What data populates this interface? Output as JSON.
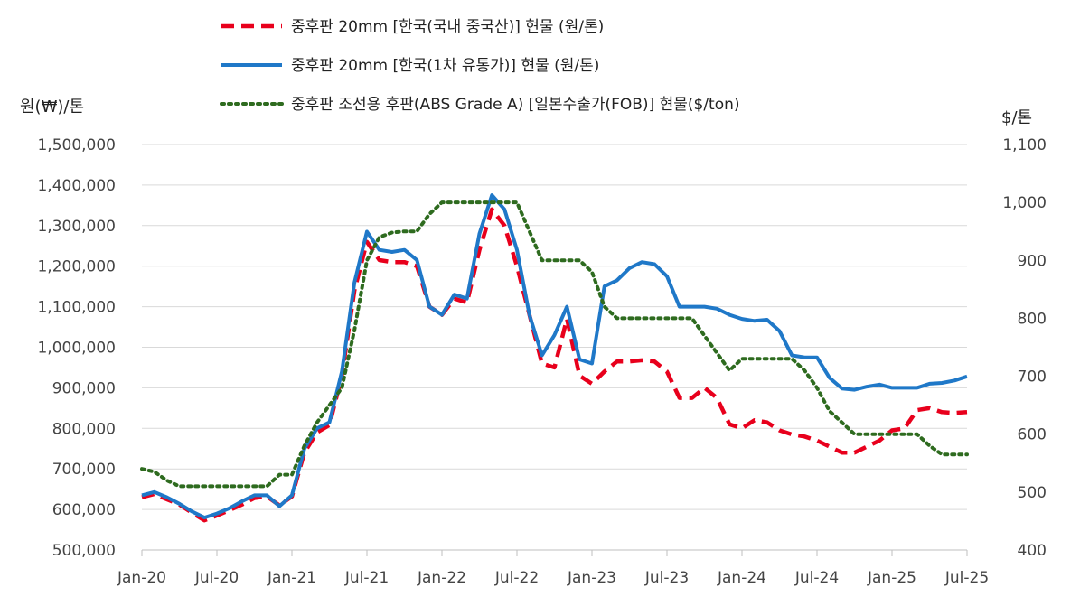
{
  "chart_data": {
    "type": "line",
    "left_axis_label": "원(₩)/톤",
    "right_axis_label": "$/톤",
    "left_ylim": [
      500000,
      1500000
    ],
    "right_ylim": [
      400,
      1100
    ],
    "left_ticks": [
      "500,000",
      "600,000",
      "700,000",
      "800,000",
      "900,000",
      "1,000,000",
      "1,100,000",
      "1,200,000",
      "1,300,000",
      "1,400,000",
      "1,500,000"
    ],
    "right_ticks": [
      "400",
      "500",
      "600",
      "700",
      "800",
      "900",
      "1,000",
      "1,100"
    ],
    "x_tick_labels": [
      "Jan-20",
      "Jul-20",
      "Jan-21",
      "Jul-21",
      "Jan-22",
      "Jul-22",
      "Jan-23",
      "Jul-23",
      "Jan-24",
      "Jul-24",
      "Jan-25",
      "Jul-25"
    ],
    "x_tick_months": [
      0,
      6,
      12,
      18,
      24,
      30,
      36,
      42,
      48,
      54,
      60,
      66
    ],
    "grid": true,
    "legend_position": "top",
    "series": [
      {
        "name": "중후판 20mm [한국(국내 중국산)] 현물 (원/톤)",
        "axis": "left",
        "color": "#e8001c",
        "style": "dashed",
        "points": [
          [
            0,
            630000
          ],
          [
            1,
            638000
          ],
          [
            2,
            625000
          ],
          [
            3,
            612000
          ],
          [
            4,
            592000
          ],
          [
            5,
            573000
          ],
          [
            6,
            585000
          ],
          [
            7,
            598000
          ],
          [
            8,
            612000
          ],
          [
            9,
            628000
          ],
          [
            10,
            632000
          ],
          [
            11,
            610000
          ],
          [
            12,
            632000
          ],
          [
            13,
            740000
          ],
          [
            14,
            790000
          ],
          [
            15,
            808000
          ],
          [
            16,
            930000
          ],
          [
            17,
            1140000
          ],
          [
            18,
            1260000
          ],
          [
            19,
            1215000
          ],
          [
            20,
            1210000
          ],
          [
            21,
            1210000
          ],
          [
            22,
            1200000
          ],
          [
            23,
            1100000
          ],
          [
            24,
            1080000
          ],
          [
            25,
            1120000
          ],
          [
            26,
            1110000
          ],
          [
            27,
            1240000
          ],
          [
            28,
            1340000
          ],
          [
            29,
            1300000
          ],
          [
            30,
            1200000
          ],
          [
            31,
            1080000
          ],
          [
            32,
            960000
          ],
          [
            33,
            950000
          ],
          [
            34,
            1070000
          ],
          [
            35,
            930000
          ],
          [
            36,
            910000
          ],
          [
            37,
            940000
          ],
          [
            38,
            965000
          ],
          [
            39,
            965000
          ],
          [
            40,
            968000
          ],
          [
            41,
            965000
          ],
          [
            42,
            940000
          ],
          [
            43,
            875000
          ],
          [
            44,
            875000
          ],
          [
            45,
            900000
          ],
          [
            46,
            875000
          ],
          [
            47,
            810000
          ],
          [
            48,
            800000
          ],
          [
            49,
            820000
          ],
          [
            50,
            815000
          ],
          [
            51,
            795000
          ],
          [
            52,
            785000
          ],
          [
            53,
            780000
          ],
          [
            54,
            770000
          ],
          [
            55,
            755000
          ],
          [
            56,
            740000
          ],
          [
            57,
            740000
          ],
          [
            58,
            755000
          ],
          [
            59,
            770000
          ],
          [
            60,
            795000
          ],
          [
            61,
            800000
          ],
          [
            62,
            845000
          ],
          [
            63,
            850000
          ],
          [
            64,
            840000
          ],
          [
            65,
            838000
          ],
          [
            66,
            840000
          ]
        ]
      },
      {
        "name": "중후판 20mm [한국(1차 유통가)] 현물 (원/톤)",
        "axis": "left",
        "color": "#1f78c8",
        "style": "solid",
        "points": [
          [
            0,
            635000
          ],
          [
            1,
            643000
          ],
          [
            2,
            630000
          ],
          [
            3,
            614000
          ],
          [
            4,
            595000
          ],
          [
            5,
            580000
          ],
          [
            6,
            590000
          ],
          [
            7,
            603000
          ],
          [
            8,
            620000
          ],
          [
            9,
            635000
          ],
          [
            10,
            635000
          ],
          [
            11,
            608000
          ],
          [
            12,
            635000
          ],
          [
            13,
            750000
          ],
          [
            14,
            800000
          ],
          [
            15,
            815000
          ],
          [
            16,
            940000
          ],
          [
            17,
            1160000
          ],
          [
            18,
            1285000
          ],
          [
            19,
            1240000
          ],
          [
            20,
            1235000
          ],
          [
            21,
            1240000
          ],
          [
            22,
            1215000
          ],
          [
            23,
            1100000
          ],
          [
            24,
            1080000
          ],
          [
            25,
            1130000
          ],
          [
            26,
            1120000
          ],
          [
            27,
            1280000
          ],
          [
            28,
            1375000
          ],
          [
            29,
            1340000
          ],
          [
            30,
            1240000
          ],
          [
            31,
            1080000
          ],
          [
            32,
            980000
          ],
          [
            33,
            1030000
          ],
          [
            34,
            1100000
          ],
          [
            35,
            970000
          ],
          [
            36,
            960000
          ],
          [
            37,
            1150000
          ],
          [
            38,
            1165000
          ],
          [
            39,
            1195000
          ],
          [
            40,
            1210000
          ],
          [
            41,
            1205000
          ],
          [
            42,
            1175000
          ],
          [
            43,
            1100000
          ],
          [
            44,
            1100000
          ],
          [
            45,
            1100000
          ],
          [
            46,
            1095000
          ],
          [
            47,
            1080000
          ],
          [
            48,
            1070000
          ],
          [
            49,
            1065000
          ],
          [
            50,
            1068000
          ],
          [
            51,
            1040000
          ],
          [
            52,
            980000
          ],
          [
            53,
            975000
          ],
          [
            54,
            975000
          ],
          [
            55,
            925000
          ],
          [
            56,
            898000
          ],
          [
            57,
            895000
          ],
          [
            58,
            903000
          ],
          [
            59,
            908000
          ],
          [
            60,
            900000
          ],
          [
            61,
            900000
          ],
          [
            62,
            900000
          ],
          [
            63,
            910000
          ],
          [
            64,
            912000
          ],
          [
            65,
            918000
          ],
          [
            66,
            928000
          ]
        ]
      },
      {
        "name": "중후판 조선용 후판(ABS Grade A) [일본수출가(FOB)] 현물($/ton)",
        "axis": "right",
        "color": "#2e6b1f",
        "style": "dotted",
        "points": [
          [
            0,
            540
          ],
          [
            1,
            535
          ],
          [
            2,
            520
          ],
          [
            3,
            510
          ],
          [
            4,
            510
          ],
          [
            5,
            510
          ],
          [
            6,
            510
          ],
          [
            7,
            510
          ],
          [
            8,
            510
          ],
          [
            9,
            510
          ],
          [
            10,
            510
          ],
          [
            11,
            530
          ],
          [
            12,
            530
          ],
          [
            13,
            580
          ],
          [
            14,
            620
          ],
          [
            15,
            650
          ],
          [
            16,
            680
          ],
          [
            17,
            780
          ],
          [
            18,
            900
          ],
          [
            19,
            940
          ],
          [
            20,
            948
          ],
          [
            21,
            950
          ],
          [
            22,
            950
          ],
          [
            23,
            980
          ],
          [
            24,
            1000
          ],
          [
            25,
            1000
          ],
          [
            26,
            1000
          ],
          [
            27,
            1000
          ],
          [
            28,
            1000
          ],
          [
            29,
            1000
          ],
          [
            30,
            1000
          ],
          [
            31,
            950
          ],
          [
            32,
            900
          ],
          [
            33,
            900
          ],
          [
            34,
            900
          ],
          [
            35,
            900
          ],
          [
            36,
            880
          ],
          [
            37,
            820
          ],
          [
            38,
            800
          ],
          [
            39,
            800
          ],
          [
            40,
            800
          ],
          [
            41,
            800
          ],
          [
            42,
            800
          ],
          [
            43,
            800
          ],
          [
            44,
            800
          ],
          [
            45,
            770
          ],
          [
            46,
            740
          ],
          [
            47,
            710
          ],
          [
            48,
            730
          ],
          [
            49,
            730
          ],
          [
            50,
            730
          ],
          [
            51,
            730
          ],
          [
            52,
            730
          ],
          [
            53,
            710
          ],
          [
            54,
            680
          ],
          [
            55,
            640
          ],
          [
            56,
            620
          ],
          [
            57,
            600
          ],
          [
            58,
            600
          ],
          [
            59,
            600
          ],
          [
            60,
            600
          ],
          [
            61,
            600
          ],
          [
            62,
            600
          ],
          [
            63,
            580
          ],
          [
            64,
            565
          ],
          [
            65,
            565
          ],
          [
            66,
            565
          ]
        ]
      }
    ]
  }
}
